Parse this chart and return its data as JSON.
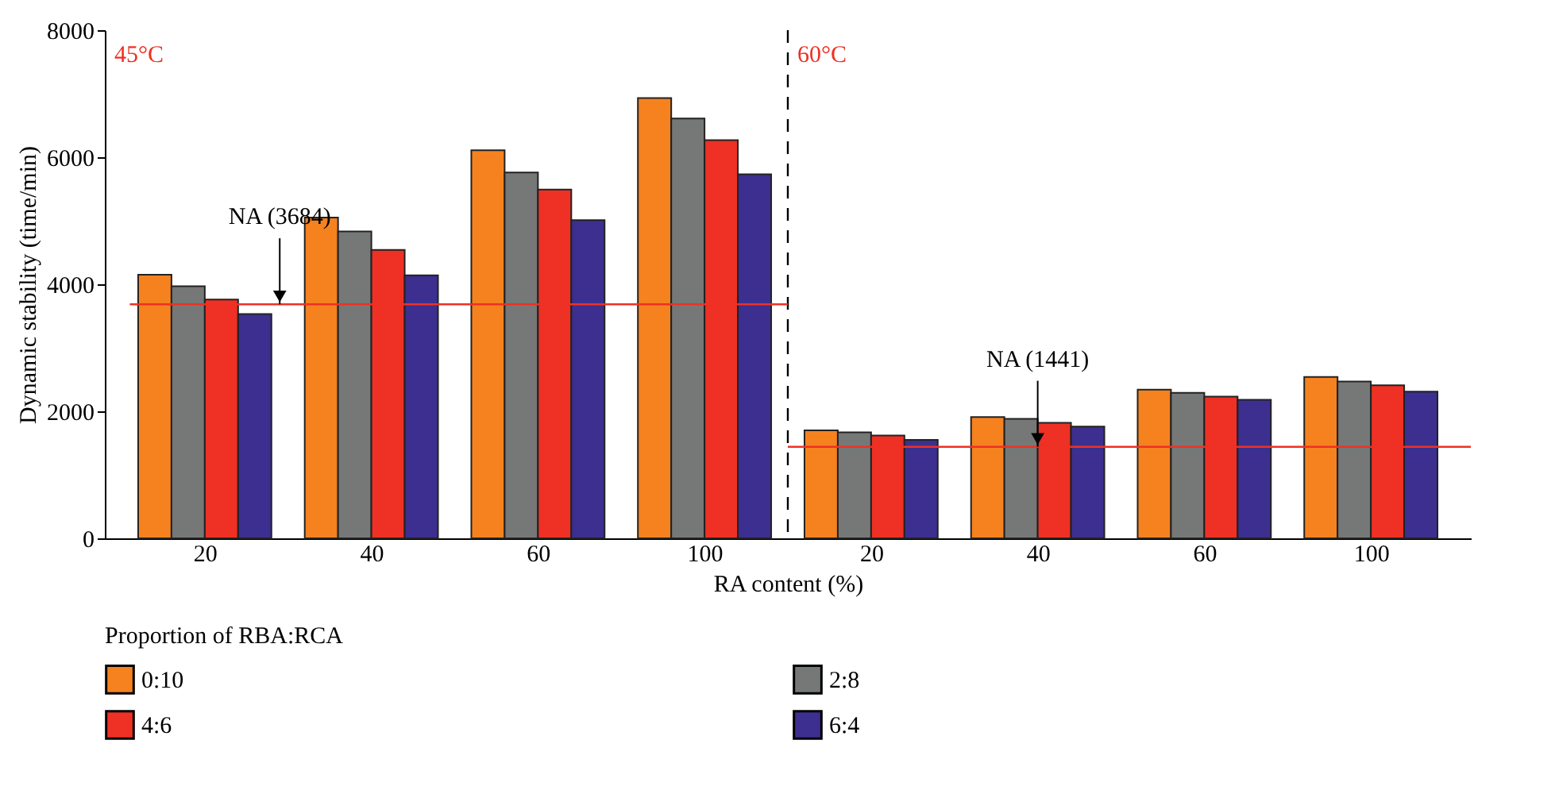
{
  "chart_data": {
    "type": "bar",
    "xlabel": "RA content (%)",
    "ylabel": "Dynamic stability (time/min)",
    "legend_title": "Proportion of RBA:RCA",
    "categories": [
      "20",
      "40",
      "60",
      "100",
      "20",
      "40",
      "60",
      "100"
    ],
    "series": [
      {
        "name": "0:10",
        "color": "#f5821f",
        "values": [
          4150,
          5050,
          6110,
          6930,
          1700,
          1910,
          2340,
          2540
        ]
      },
      {
        "name": "2:8",
        "color": "#767878",
        "values": [
          3970,
          4830,
          5760,
          6610,
          1670,
          1880,
          2290,
          2470
        ]
      },
      {
        "name": "4:6",
        "color": "#ee3124",
        "values": [
          3760,
          4540,
          5490,
          6270,
          1620,
          1820,
          2230,
          2410
        ]
      },
      {
        "name": "6:4",
        "color": "#3c2f8f",
        "values": [
          3530,
          4140,
          5010,
          5730,
          1550,
          1760,
          2180,
          2310
        ]
      }
    ],
    "ylim": [
      0,
      8000
    ],
    "yticks": [
      0,
      2000,
      4000,
      6000,
      8000
    ],
    "grid": false,
    "legend": "bottom",
    "ref_lines": [
      {
        "axis": "y",
        "value": 3684,
        "label": "NA (3684)",
        "color": "#ee3124"
      },
      {
        "axis": "y",
        "value": 1441,
        "label": "NA (1441)",
        "color": "#ee3124"
      }
    ],
    "annotations": [
      "45°C",
      "60°C"
    ]
  }
}
